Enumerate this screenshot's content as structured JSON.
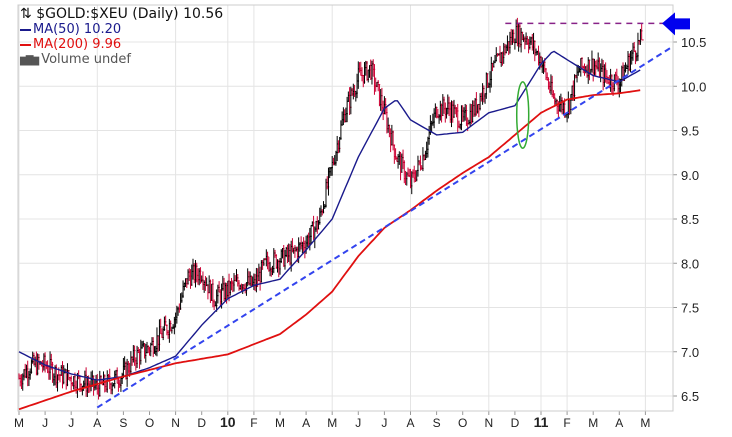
{
  "chart_data": {
    "type": "line",
    "title": "$GOLD:$XEU (Daily) 10.56",
    "title_icon": "up-down-arrows-icon",
    "legend": [
      {
        "name": "MA(50) 10.20",
        "color": "#1a1a8c"
      },
      {
        "name": "MA(200) 9.96",
        "color": "#e01010"
      },
      {
        "name": "Volume undef",
        "color": "#555555",
        "icon": "volume-bars-icon"
      }
    ],
    "x_tick_labels": [
      "M",
      "J",
      "J",
      "A",
      "S",
      "O",
      "N",
      "D",
      "10",
      "F",
      "M",
      "A",
      "M",
      "J",
      "J",
      "A",
      "S",
      "O",
      "N",
      "D",
      "11",
      "F",
      "M",
      "A",
      "M"
    ],
    "y_tick_labels": [
      "6.5",
      "7.0",
      "7.5",
      "8.0",
      "8.5",
      "9.0",
      "9.5",
      "10.0",
      "10.5"
    ],
    "ylim": [
      6.4,
      10.85
    ],
    "xlim": [
      "2009-05-01",
      "2011-05-20"
    ],
    "grid": true,
    "series": [
      {
        "key": "price",
        "style": "ohlc-bars",
        "up_color": "#000000",
        "down_color": "#cc0033",
        "x": [
          "2009-05-01",
          "2009-05-15",
          "2009-06-01",
          "2009-06-15",
          "2009-07-01",
          "2009-07-15",
          "2009-08-01",
          "2009-08-15",
          "2009-09-01",
          "2009-09-15",
          "2009-10-01",
          "2009-10-15",
          "2009-11-01",
          "2009-11-15",
          "2009-12-01",
          "2009-12-15",
          "2010-01-01",
          "2010-01-15",
          "2010-02-01",
          "2010-02-15",
          "2010-03-01",
          "2010-03-15",
          "2010-04-01",
          "2010-04-15",
          "2010-05-01",
          "2010-05-15",
          "2010-06-01",
          "2010-06-15",
          "2010-07-01",
          "2010-07-15",
          "2010-08-01",
          "2010-08-15",
          "2010-09-01",
          "2010-09-15",
          "2010-10-01",
          "2010-10-15",
          "2010-11-01",
          "2010-11-15",
          "2010-12-01",
          "2010-12-15",
          "2011-01-01",
          "2011-01-15",
          "2011-02-01",
          "2011-02-15",
          "2011-03-01",
          "2011-03-15",
          "2011-04-01",
          "2011-04-15",
          "2011-04-28"
        ],
        "values": [
          6.7,
          6.85,
          6.85,
          6.75,
          6.7,
          6.65,
          6.6,
          6.65,
          6.75,
          6.95,
          7.05,
          7.2,
          7.4,
          7.85,
          7.9,
          7.6,
          7.7,
          7.8,
          7.75,
          8.0,
          8.05,
          8.1,
          8.25,
          8.45,
          9.1,
          9.7,
          10.1,
          10.2,
          9.7,
          9.2,
          8.9,
          9.2,
          9.75,
          9.75,
          9.6,
          9.75,
          10.1,
          10.35,
          10.6,
          10.55,
          10.3,
          9.85,
          9.75,
          10.2,
          10.25,
          10.1,
          10.05,
          10.35,
          10.56
        ]
      },
      {
        "name": "MA(50)",
        "color": "#1a1a8c",
        "x": [
          "2009-05-01",
          "2009-06-01",
          "2009-07-01",
          "2009-08-01",
          "2009-09-01",
          "2009-10-01",
          "2009-11-01",
          "2009-12-01",
          "2010-01-01",
          "2010-02-01",
          "2010-03-01",
          "2010-04-01",
          "2010-05-01",
          "2010-06-01",
          "2010-07-01",
          "2010-07-15",
          "2010-08-01",
          "2010-09-01",
          "2010-10-01",
          "2010-11-01",
          "2010-12-01",
          "2011-01-01",
          "2011-01-15",
          "2011-02-01",
          "2011-03-01",
          "2011-04-01",
          "2011-04-28"
        ],
        "values": [
          7.0,
          6.85,
          6.75,
          6.68,
          6.72,
          6.82,
          6.95,
          7.3,
          7.6,
          7.75,
          7.82,
          8.15,
          8.5,
          9.2,
          9.75,
          9.85,
          9.62,
          9.45,
          9.48,
          9.7,
          9.78,
          10.25,
          10.4,
          10.3,
          10.12,
          10.05,
          10.2
        ]
      },
      {
        "name": "MA(200)",
        "color": "#e01010",
        "x": [
          "2009-05-01",
          "2009-07-01",
          "2009-09-01",
          "2009-11-01",
          "2010-01-01",
          "2010-03-01",
          "2010-04-01",
          "2010-05-01",
          "2010-06-01",
          "2010-07-01",
          "2010-08-01",
          "2010-09-01",
          "2010-10-01",
          "2010-11-01",
          "2010-12-01",
          "2011-01-01",
          "2011-02-01",
          "2011-03-01",
          "2011-04-01",
          "2011-04-28"
        ],
        "values": [
          6.35,
          6.55,
          6.72,
          6.87,
          6.97,
          7.2,
          7.42,
          7.68,
          8.08,
          8.4,
          8.6,
          8.82,
          9.02,
          9.2,
          9.45,
          9.7,
          9.85,
          9.9,
          9.92,
          9.96
        ]
      }
    ],
    "annotations": [
      {
        "type": "trendline",
        "style": "dashed",
        "color": "#3344ee",
        "from": [
          "2009-08-01",
          6.37
        ],
        "to": [
          "2011-06-01",
          10.44
        ]
      },
      {
        "type": "horizontal-line",
        "style": "dashed",
        "color": "#882288",
        "from_date": "2010-11-20",
        "value": 10.71
      },
      {
        "type": "arrow",
        "direction": "left",
        "color": "#0000ee",
        "value": 10.71
      },
      {
        "type": "ellipse",
        "color": "#33aa33",
        "date": "2010-12-10",
        "range": [
          9.3,
          10.05
        ]
      }
    ]
  }
}
